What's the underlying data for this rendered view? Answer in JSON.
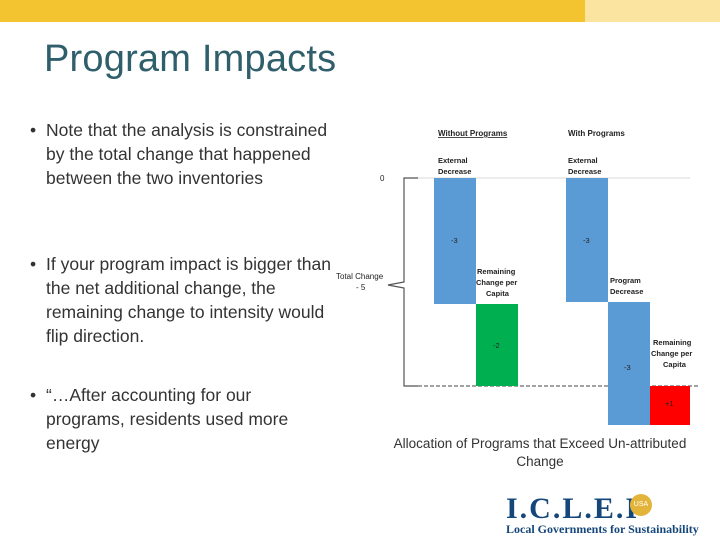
{
  "slide": {
    "title": "Program Impacts",
    "bullets": [
      "Note that the analysis is constrained by the total change that happened between the two inventories",
      "If your program impact is bigger than the net additional change, the remaining change to intensity would flip direction.",
      "“…After accounting for our programs, residents used more energy"
    ],
    "caption": "Allocation of Programs that Exceed Un-attributed Change",
    "logo": {
      "text": "I.C.L.E.I",
      "subtitle": "Local Governments for Sustainability",
      "badge": "USA"
    },
    "colors": {
      "accent_bar": "#f4c430",
      "blue": "#5b9bd5",
      "green": "#00b050",
      "red": "#ff0000"
    }
  },
  "diagram": {
    "header_without": "Without Programs",
    "header_with": "With Programs",
    "zero_label": "0",
    "total_change_label": "Total Change",
    "total_change_value": "- 5",
    "without": {
      "external_label_1": "External",
      "external_label_2": "Decrease",
      "external_value": "-3",
      "remaining_label_1": "Remaining",
      "remaining_label_2": "Change per",
      "remaining_label_3": "Capita",
      "remaining_value": "-2"
    },
    "with": {
      "external_label_1": "External",
      "external_label_2": "Decrease",
      "external_value": "-3",
      "program_label_1": "Program",
      "program_label_2": "Decrease",
      "program_value": "-3",
      "remaining_label_1": "Remaining",
      "remaining_label_2": "Change per",
      "remaining_label_3": "Capita",
      "remaining_value": "+1"
    }
  }
}
